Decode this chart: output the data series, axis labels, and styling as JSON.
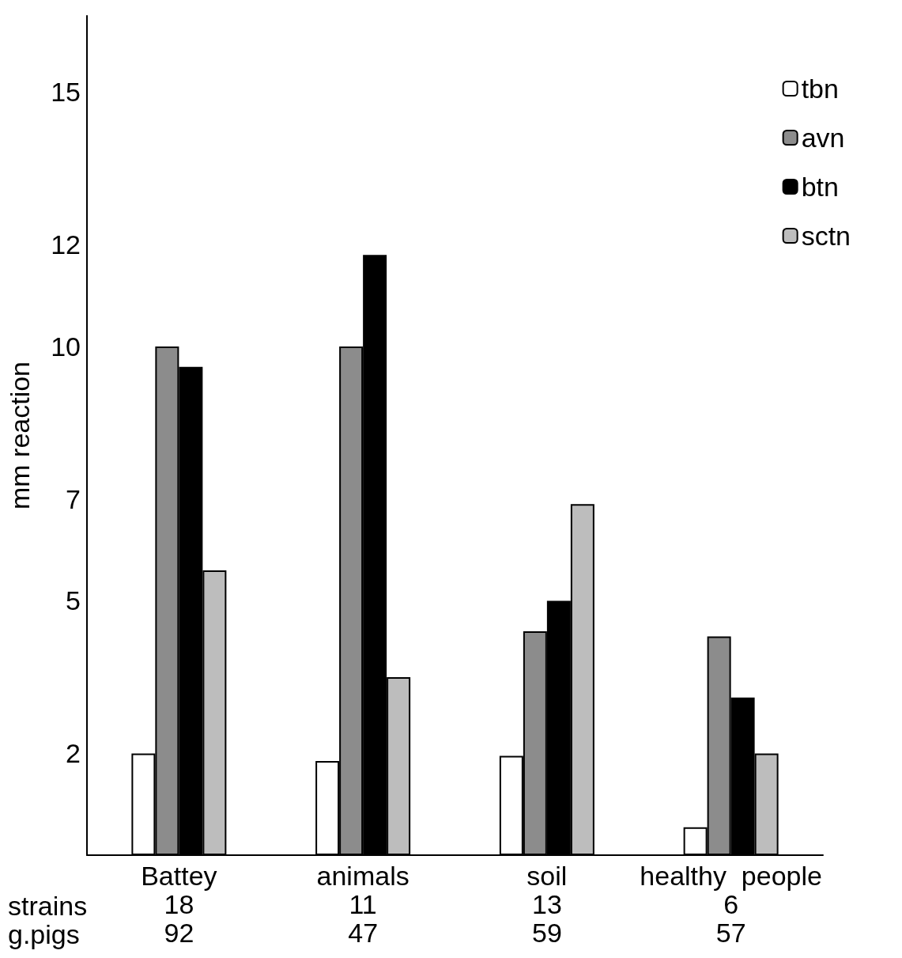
{
  "chart_data": {
    "type": "bar",
    "ylabel": "mm reaction",
    "categories": [
      "Battey\n18\n92",
      "animals\n11\n47",
      "soil\n13\n59",
      "healthy  people\n6\n57"
    ],
    "series": [
      {
        "name": "tbn",
        "color": "#ffffff",
        "values": [
          2.0,
          1.85,
          1.95,
          0.55
        ]
      },
      {
        "name": "avn",
        "color": "#8c8c8c",
        "values": [
          10,
          10,
          4.4,
          4.3
        ]
      },
      {
        "name": "btn",
        "color": "#000000",
        "values": [
          9.6,
          11.8,
          5.0,
          3.1
        ]
      },
      {
        "name": "sctn",
        "color": "#bdbdbd",
        "values": [
          5.6,
          3.5,
          6.9,
          2.0
        ]
      }
    ],
    "ylim": [
      0,
      16.5
    ],
    "yticks": [
      2,
      5,
      7,
      10,
      12,
      15
    ],
    "grid": false,
    "legend": "top right",
    "annotations": [
      "strains",
      "g.pigs"
    ]
  }
}
